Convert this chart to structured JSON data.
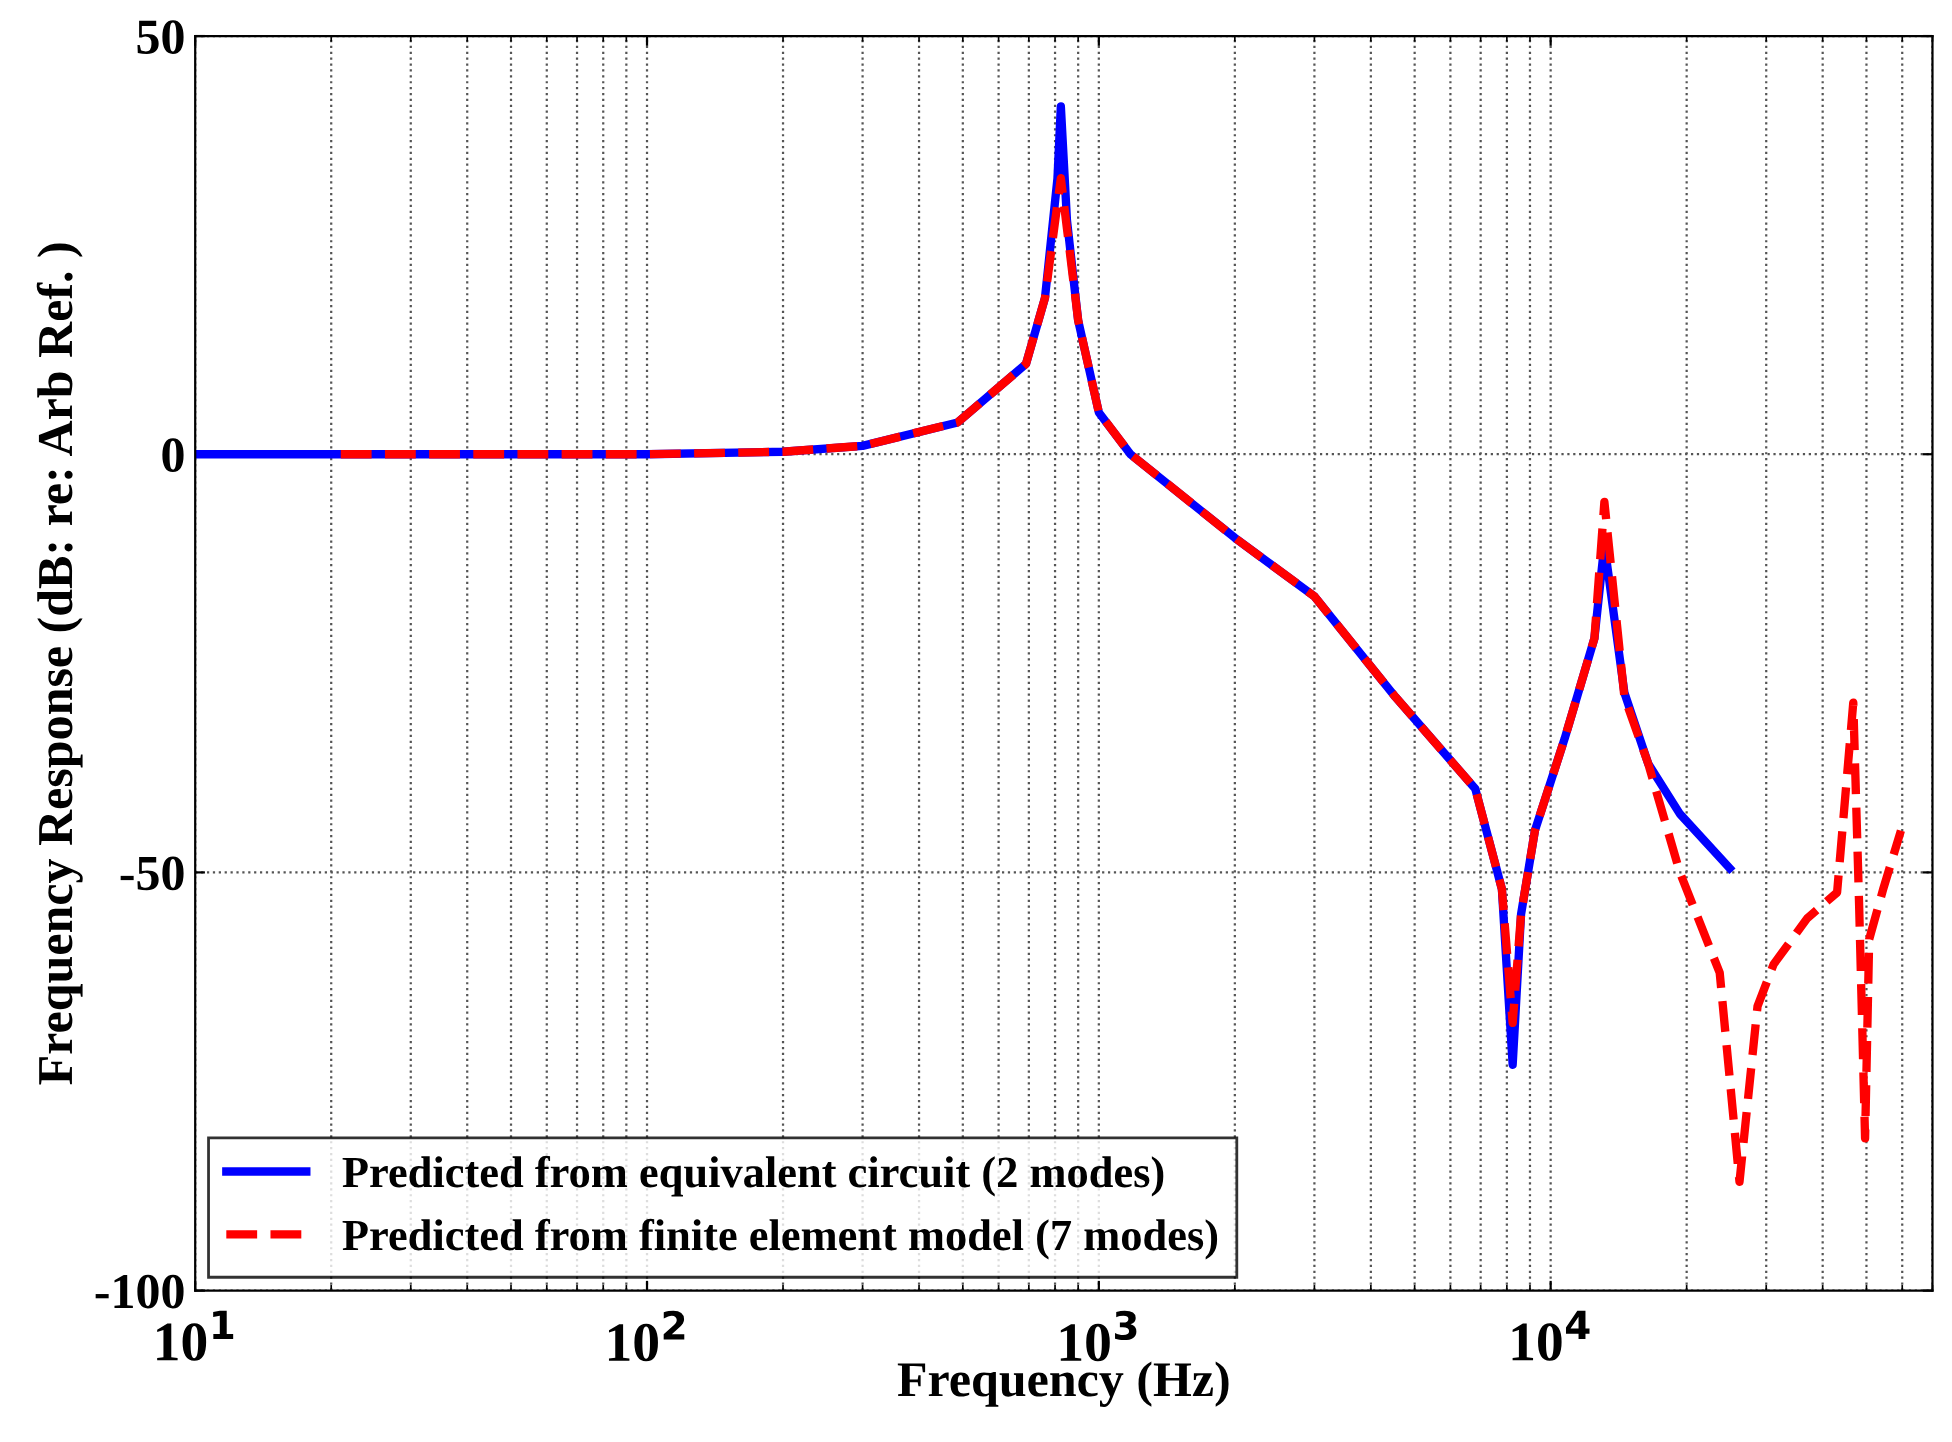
{
  "chart_data": {
    "type": "line",
    "xlabel": "Frequency (Hz)",
    "ylabel": "Frequency Response (dB: re: Arb Ref. )",
    "log": "x",
    "xlim": [
      10,
      70000
    ],
    "ylim": [
      -100,
      50
    ],
    "xticks": [
      {
        "value": 10,
        "label": "10$^{1}$"
      },
      {
        "value": 100,
        "label": "10$^{2}$"
      },
      {
        "value": 1000,
        "label": "10$^{3}$"
      },
      {
        "value": 10000,
        "label": "10$^{4}$"
      }
    ],
    "yticks": [
      -100,
      -50,
      0,
      50
    ],
    "grid": true,
    "legend": "bottom left",
    "series": [
      {
        "name": "Predicted from equivalent circuit (2 modes)",
        "color": "#0000ff",
        "line_style": "solid",
        "x": [
          10,
          30,
          100,
          200,
          300,
          487,
          690,
          760,
          810,
          824,
          850,
          900,
          1000,
          1175,
          2000,
          3000,
          4530,
          6810,
          7800,
          8240,
          8600,
          9230,
          10740,
          12500,
          13150,
          14560,
          16440,
          19320,
          24900
        ],
        "values": [
          0,
          0,
          0,
          0.3,
          1,
          3.8,
          10.8,
          18.7,
          33,
          41.6,
          28,
          16,
          5,
          0,
          -10,
          -17,
          -29,
          -40,
          -52,
          -73,
          -55,
          -45,
          -34,
          -22,
          -10.8,
          -28.5,
          -37,
          -43,
          -49.5
        ]
      },
      {
        "name": "Predicted from finite element model (7 modes)",
        "color": "#ff0000",
        "line_style": "dashed",
        "x": [
          21,
          100,
          200,
          300,
          487,
          690,
          760,
          810,
          824,
          850,
          900,
          1000,
          1175,
          2000,
          3000,
          4530,
          6810,
          7800,
          8240,
          8600,
          9230,
          10740,
          12500,
          13150,
          14560,
          16440,
          19320,
          23670,
          26180,
          28700,
          31140,
          36960,
          43050,
          46750,
          48170,
          49650,
          50700,
          54450,
          59600
        ],
        "values": [
          0,
          0,
          0.3,
          1,
          3.8,
          10.8,
          18.7,
          30,
          33,
          27,
          16,
          5,
          0,
          -10,
          -17,
          -29,
          -40,
          -52,
          -68,
          -55,
          -45,
          -34,
          -22,
          -5.7,
          -29,
          -37,
          -50,
          -62,
          -87,
          -66,
          -61,
          -55.5,
          -52.4,
          -29.7,
          -54,
          -81.8,
          -58,
          -52,
          -45
        ]
      }
    ]
  }
}
